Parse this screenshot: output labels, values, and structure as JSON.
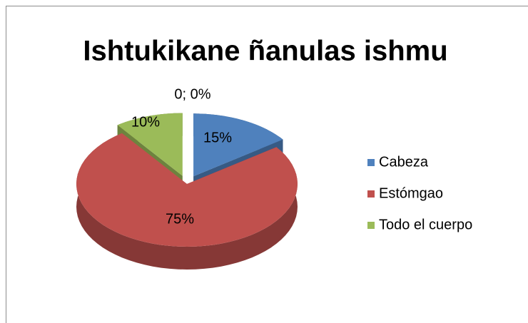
{
  "chart_data": {
    "type": "pie3d",
    "title": "Ishtukikane ñanulas ishmu",
    "categories": [
      "Cabeza",
      "Estómgao",
      "Todo el cuerpo",
      null
    ],
    "values": [
      15,
      75,
      10,
      0
    ],
    "value_labels": [
      "15%",
      "75%",
      "10%",
      "0; 0%"
    ],
    "colors": [
      "#4f81bd",
      "#c0504d",
      "#9bbb59",
      "#8064a2"
    ],
    "legend": "right"
  }
}
